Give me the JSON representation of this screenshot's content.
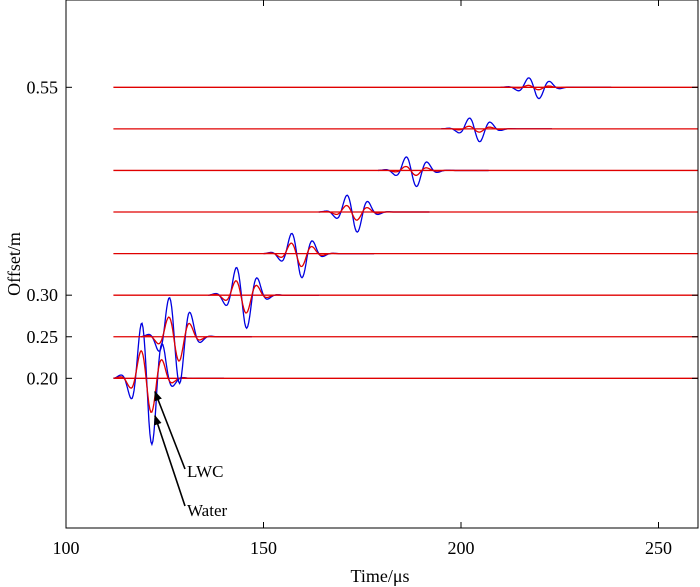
{
  "chart_data": {
    "type": "line",
    "title": "",
    "xlabel": "Time/μs",
    "ylabel": "Offset/m",
    "xlim": [
      100,
      260
    ],
    "ylim": [
      0.02,
      0.655
    ],
    "x_ticks": [
      "100",
      "150",
      "200",
      "250"
    ],
    "y_ticks": [
      "0.20",
      "0.25",
      "0.30",
      "0.55"
    ],
    "grid": false,
    "baseline": {
      "x_start": 112,
      "x_end": 260
    },
    "traces": [
      {
        "offset": 0.2,
        "onset": 112,
        "amp_water": 0.082,
        "amp_lwc": 0.042
      },
      {
        "offset": 0.25,
        "onset": 119,
        "amp_water": 0.058,
        "amp_lwc": 0.03
      },
      {
        "offset": 0.3,
        "onset": 136,
        "amp_water": 0.041,
        "amp_lwc": 0.022
      },
      {
        "offset": 0.35,
        "onset": 150,
        "amp_water": 0.03,
        "amp_lwc": 0.016
      },
      {
        "offset": 0.4,
        "onset": 164,
        "amp_water": 0.025,
        "amp_lwc": 0.01
      },
      {
        "offset": 0.45,
        "onset": 179,
        "amp_water": 0.02,
        "amp_lwc": 0.006
      },
      {
        "offset": 0.5,
        "onset": 195,
        "amp_water": 0.016,
        "amp_lwc": 0.004
      },
      {
        "offset": 0.55,
        "onset": 210,
        "amp_water": 0.014,
        "amp_lwc": 0.003
      }
    ],
    "series": [
      {
        "name": "Water",
        "color": "#0000e0"
      },
      {
        "name": "LWC",
        "color": "#e00000"
      }
    ],
    "annotations": [
      {
        "text": "LWC",
        "target": [
          121.5,
          0.184
        ]
      },
      {
        "text": "Water",
        "target": [
          121.5,
          0.155
        ]
      }
    ]
  }
}
